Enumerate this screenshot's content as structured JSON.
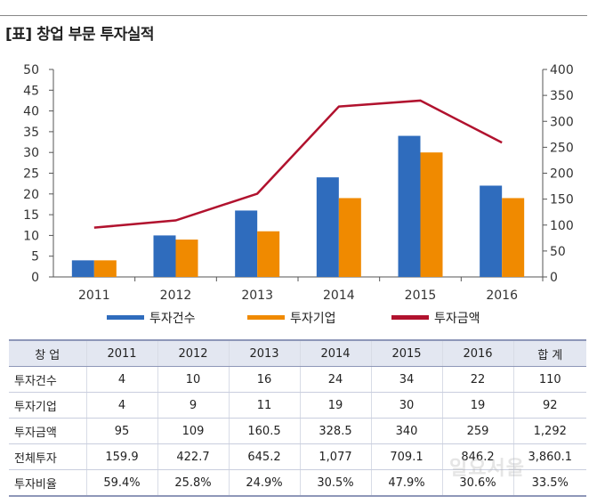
{
  "title": "[표] 창업 부문 투자실적",
  "chart_data": {
    "type": "bar+line",
    "categories": [
      "2011",
      "2012",
      "2013",
      "2014",
      "2015",
      "2016"
    ],
    "y_left": {
      "ticks": [
        0,
        5,
        10,
        15,
        20,
        25,
        30,
        35,
        40,
        45,
        50
      ],
      "range": [
        0,
        50
      ]
    },
    "y_right": {
      "ticks": [
        0,
        50,
        100,
        150,
        200,
        250,
        300,
        350,
        400
      ],
      "range": [
        0,
        400
      ]
    },
    "series": [
      {
        "name": "투자건수",
        "type": "bar",
        "axis": "left",
        "color": "#2f6cbd",
        "values": [
          4,
          10,
          16,
          24,
          34,
          22
        ]
      },
      {
        "name": "투자기업",
        "type": "bar",
        "axis": "left",
        "color": "#f08a00",
        "values": [
          4,
          9,
          11,
          19,
          30,
          19
        ]
      },
      {
        "name": "투자금액",
        "type": "line",
        "axis": "right",
        "color": "#b1122e",
        "values": [
          95,
          109,
          160.5,
          328.5,
          340,
          259
        ]
      }
    ],
    "legend_position": "bottom",
    "grid": false
  },
  "table": {
    "header": [
      "창 업",
      "2011",
      "2012",
      "2013",
      "2014",
      "2015",
      "2016",
      "합 계"
    ],
    "rows": [
      [
        "투자건수",
        "4",
        "10",
        "16",
        "24",
        "34",
        "22",
        "110"
      ],
      [
        "투자기업",
        "4",
        "9",
        "11",
        "19",
        "30",
        "19",
        "92"
      ],
      [
        "투자금액",
        "95",
        "109",
        "160.5",
        "328.5",
        "340",
        "259",
        "1,292"
      ],
      [
        "전체투자",
        "159.9",
        "422.7",
        "645.2",
        "1,077",
        "709.1",
        "846.2",
        "3,860.1"
      ],
      [
        "투자비율",
        "59.4%",
        "25.8%",
        "24.9%",
        "30.5%",
        "47.9%",
        "30.6%",
        "33.5%"
      ]
    ]
  },
  "watermark": "일요서울"
}
